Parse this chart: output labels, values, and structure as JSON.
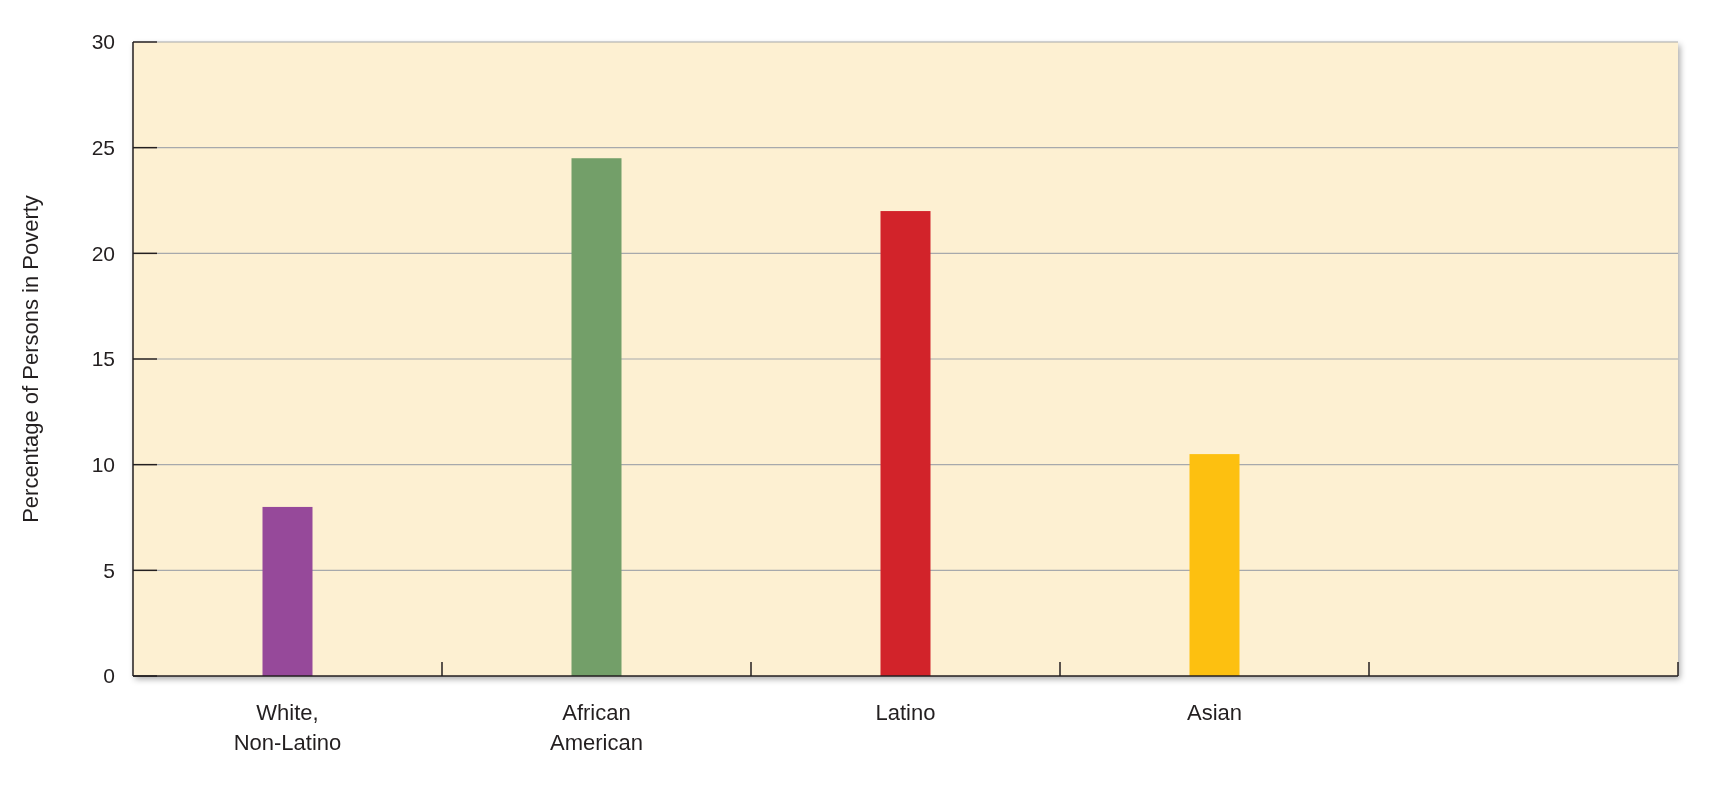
{
  "chart_data": {
    "type": "bar",
    "ylabel": "Percentage of Persons in Poverty",
    "categories": [
      "White, Non-Latino",
      "African American",
      "Latino",
      "Asian",
      null
    ],
    "values": [
      8,
      24.5,
      22,
      10.5,
      null
    ],
    "colors": [
      "#96499a",
      "#739f69",
      "#d2232a",
      "#fdc010",
      null
    ],
    "ylim": [
      0,
      30
    ],
    "yticks": [
      0,
      5,
      10,
      15,
      20,
      25,
      30
    ],
    "grid": "y"
  }
}
